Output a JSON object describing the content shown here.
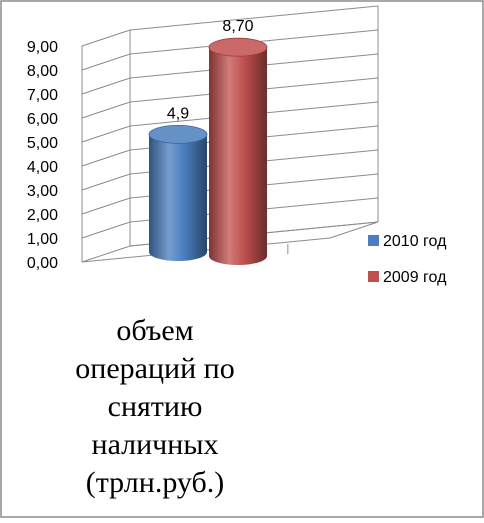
{
  "chart_data": {
    "type": "bar",
    "style": "3d-cylinder",
    "series": [
      {
        "name": "2010 год",
        "values": [
          4.9
        ],
        "label": "4,9",
        "color": "#4A7EC0"
      },
      {
        "name": "2009 год",
        "values": [
          8.7
        ],
        "label": "8,70",
        "color": "#C0504D"
      }
    ],
    "yticks": [
      "0,00",
      "1,00",
      "2,00",
      "3,00",
      "4,00",
      "5,00",
      "6,00",
      "7,00",
      "8,00",
      "9,00"
    ],
    "ylim": [
      0,
      9
    ],
    "grid": true,
    "legend": "right",
    "title_lines": [
      "объем",
      "операций по",
      "снятию",
      "наличных",
      "(трлн.руб.)"
    ]
  }
}
